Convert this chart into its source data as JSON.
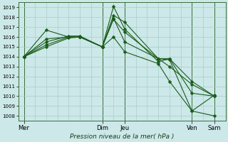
{
  "xlabel": "Pression niveau de la mer( hPa )",
  "ylim": [
    1007.5,
    1019.5
  ],
  "yticks": [
    1008,
    1009,
    1010,
    1011,
    1012,
    1013,
    1014,
    1015,
    1016,
    1017,
    1018,
    1019
  ],
  "bg_color": "#cce8e8",
  "grid_color": "#aacccc",
  "line_color": "#1a5c1a",
  "lines": [
    {
      "x": [
        0,
        2,
        4,
        5,
        7,
        8,
        9,
        12,
        13,
        15,
        17
      ],
      "y": [
        1014.0,
        1015.0,
        1015.9,
        1016.0,
        1015.0,
        1019.1,
        1016.8,
        1013.5,
        1013.8,
        1010.3,
        1010.0
      ]
    },
    {
      "x": [
        0,
        2,
        4,
        5,
        7,
        8,
        9,
        12,
        13,
        15,
        17
      ],
      "y": [
        1014.0,
        1016.7,
        1016.0,
        1016.0,
        1015.0,
        1018.2,
        1017.5,
        1013.8,
        1013.8,
        1011.5,
        1010.0
      ]
    },
    {
      "x": [
        0,
        2,
        4,
        5,
        7,
        8,
        9,
        12,
        13,
        15,
        17
      ],
      "y": [
        1014.0,
        1015.2,
        1016.0,
        1016.0,
        1015.0,
        1017.9,
        1015.5,
        1013.8,
        1013.7,
        1008.5,
        1010.1
      ]
    },
    {
      "x": [
        0,
        2,
        4,
        5,
        7,
        8,
        9,
        12,
        13,
        15,
        17
      ],
      "y": [
        1014.0,
        1015.8,
        1016.0,
        1016.0,
        1015.0,
        1017.8,
        1016.5,
        1013.8,
        1013.0,
        1011.2,
        1010.0
      ]
    },
    {
      "x": [
        0,
        2,
        4,
        5,
        7,
        8,
        9,
        12,
        13,
        15,
        17
      ],
      "y": [
        1014.0,
        1015.5,
        1016.1,
        1016.1,
        1015.0,
        1016.0,
        1014.5,
        1013.3,
        1011.5,
        1008.5,
        1008.0
      ]
    }
  ],
  "xtick_major_pos": [
    0,
    7,
    9,
    15,
    17
  ],
  "xtick_major_lab": [
    "Mer",
    "Dim",
    "Jeu",
    "Ven",
    "Sam"
  ],
  "vline_dark_pos": [
    0,
    7,
    9,
    15,
    17
  ],
  "xlim": [
    -0.5,
    18
  ],
  "marker": "D",
  "marker_size": 2.5
}
